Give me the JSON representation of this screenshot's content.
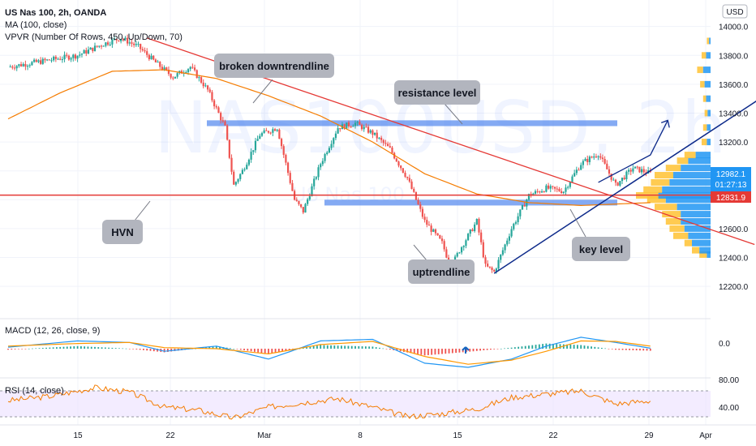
{
  "header": {
    "symbol_line": "US Nas 100, 2h, OANDA",
    "ma_line": "MA (100, close)",
    "vpvr_line": "VPVR (Number Of Rows, 450, Up/Down, 70)",
    "currency": "USD"
  },
  "watermark": {
    "main": "NAS100USD, 2h",
    "sub": "US Nas 100"
  },
  "colors": {
    "up": "#26a69a",
    "down": "#ef5350",
    "ma": "#f57c00",
    "trend_red": "#e53935",
    "trend_blue": "#0d2a8a",
    "zone": "#5b8def",
    "macd": "#2196f3",
    "signal": "#ff9800",
    "rsi": "#f57c00",
    "rsi_band": "#e9ddff",
    "vp_up": "#2196f3",
    "vp_down": "#ffc233"
  },
  "annotations": {
    "broken_downtrend": "broken downtrendline",
    "resistance": "resistance level",
    "hvn": "HVN",
    "key_level": "key level",
    "uptrendline": "uptrendline"
  },
  "chart_data": {
    "type": "candlestick",
    "title": "US Nas 100, 2h, OANDA",
    "x_ticks": [
      "15",
      "22",
      "Mar",
      "8",
      "15",
      "22",
      "29",
      "Apr"
    ],
    "y_ticks": [
      "14000.0",
      "13800.0",
      "13600.0",
      "13400.0",
      "13200.0",
      "12600.0",
      "12400.0",
      "12200.0"
    ],
    "ylim": [
      12150,
      14060
    ],
    "price_path": [
      [
        0,
        13720
      ],
      [
        4,
        13760
      ],
      [
        8,
        13800
      ],
      [
        11,
        13880
      ],
      [
        13,
        13920
      ],
      [
        15,
        13860
      ],
      [
        17,
        13750
      ],
      [
        19,
        13650
      ],
      [
        21,
        13720
      ],
      [
        23,
        13560
      ],
      [
        25,
        13300
      ],
      [
        26,
        12900
      ],
      [
        27,
        13000
      ],
      [
        29,
        13250
      ],
      [
        31,
        13300
      ],
      [
        33,
        12800
      ],
      [
        34,
        12720
      ],
      [
        36,
        13050
      ],
      [
        38,
        13300
      ],
      [
        40,
        13330
      ],
      [
        42,
        13260
      ],
      [
        44,
        13150
      ],
      [
        46,
        12950
      ],
      [
        48,
        12650
      ],
      [
        50,
        12500
      ],
      [
        51,
        12330
      ],
      [
        52,
        12450
      ],
      [
        54,
        12650
      ],
      [
        55,
        12340
      ],
      [
        56,
        12300
      ],
      [
        58,
        12600
      ],
      [
        60,
        12830
      ],
      [
        62,
        12880
      ],
      [
        64,
        12860
      ],
      [
        66,
        13050
      ],
      [
        68,
        13120
      ],
      [
        70,
        12900
      ],
      [
        72,
        13020
      ],
      [
        74,
        12982
      ]
    ],
    "ma_path": [
      [
        0,
        13360
      ],
      [
        6,
        13540
      ],
      [
        12,
        13690
      ],
      [
        18,
        13700
      ],
      [
        24,
        13640
      ],
      [
        30,
        13520
      ],
      [
        36,
        13380
      ],
      [
        42,
        13200
      ],
      [
        48,
        12980
      ],
      [
        54,
        12840
      ],
      [
        60,
        12780
      ],
      [
        66,
        12760
      ],
      [
        70,
        12770
      ],
      [
        74,
        12780
      ]
    ],
    "current_price": "12982.1",
    "countdown": "01:27:13",
    "red_line_price": "12831.9",
    "hvn_price": 12832,
    "resistance_zone": [
      13310,
      13350
    ],
    "key_level_zone": [
      12760,
      12800
    ],
    "downtrend": {
      "from": [
        16,
        13920
      ],
      "to": [
        86,
        12490
      ]
    },
    "uptrend": {
      "from": [
        56,
        12290
      ],
      "to": [
        96,
        13870
      ]
    },
    "projection": [
      [
        68,
        12920
      ],
      [
        74,
        13110
      ],
      [
        76,
        13350
      ]
    ],
    "macd": {
      "label": "MACD (12, 26, close, 9)",
      "y_ticks": [
        "0.0"
      ],
      "macd_path": [
        [
          0,
          3
        ],
        [
          8,
          15
        ],
        [
          14,
          12
        ],
        [
          18,
          -5
        ],
        [
          24,
          5
        ],
        [
          30,
          -20
        ],
        [
          36,
          15
        ],
        [
          42,
          18
        ],
        [
          48,
          -28
        ],
        [
          53,
          -36
        ],
        [
          58,
          -20
        ],
        [
          62,
          5
        ],
        [
          66,
          22
        ],
        [
          70,
          12
        ],
        [
          74,
          1
        ]
      ],
      "signal_path": [
        [
          0,
          5
        ],
        [
          8,
          10
        ],
        [
          14,
          12
        ],
        [
          18,
          2
        ],
        [
          24,
          0
        ],
        [
          30,
          -10
        ],
        [
          36,
          8
        ],
        [
          42,
          14
        ],
        [
          48,
          -15
        ],
        [
          53,
          -30
        ],
        [
          58,
          -22
        ],
        [
          62,
          -5
        ],
        [
          66,
          15
        ],
        [
          70,
          14
        ],
        [
          74,
          5
        ]
      ],
      "ylim": [
        -50,
        50
      ]
    },
    "rsi": {
      "label": "RSI (14, close)",
      "y_ticks": [
        "80.00",
        "40.00"
      ],
      "band": [
        30,
        70
      ],
      "rsi_path": [
        [
          0,
          55
        ],
        [
          5,
          62
        ],
        [
          10,
          75
        ],
        [
          14,
          68
        ],
        [
          18,
          45
        ],
        [
          22,
          40
        ],
        [
          26,
          28
        ],
        [
          30,
          45
        ],
        [
          34,
          52
        ],
        [
          38,
          58
        ],
        [
          42,
          45
        ],
        [
          46,
          30
        ],
        [
          50,
          35
        ],
        [
          54,
          42
        ],
        [
          58,
          60
        ],
        [
          62,
          65
        ],
        [
          66,
          70
        ],
        [
          70,
          50
        ],
        [
          74,
          55
        ]
      ],
      "ylim": [
        20,
        85
      ]
    },
    "volume_profile": {
      "rows": [
        [
          12420,
          0.15,
          0.05
        ],
        [
          12450,
          0.25,
          0.15
        ],
        [
          12500,
          0.35,
          0.25
        ],
        [
          12550,
          0.5,
          0.3
        ],
        [
          12600,
          0.55,
          0.35
        ],
        [
          12650,
          0.6,
          0.4
        ],
        [
          12700,
          0.65,
          0.4
        ],
        [
          12750,
          0.75,
          0.45
        ],
        [
          12800,
          0.85,
          0.6
        ],
        [
          12830,
          1.0,
          0.7
        ],
        [
          12870,
          0.9,
          0.65
        ],
        [
          12920,
          0.8,
          0.55
        ],
        [
          12970,
          0.75,
          0.5
        ],
        [
          13020,
          0.6,
          0.4
        ],
        [
          13070,
          0.45,
          0.3
        ],
        [
          13110,
          0.35,
          0.2
        ],
        [
          13200,
          0.12,
          0.05
        ],
        [
          13300,
          0.1,
          0.05
        ],
        [
          13400,
          0.08,
          0.04
        ],
        [
          13500,
          0.1,
          0.06
        ],
        [
          13600,
          0.14,
          0.08
        ],
        [
          13700,
          0.18,
          0.1
        ],
        [
          13800,
          0.12,
          0.06
        ],
        [
          13900,
          0.05,
          0.02
        ]
      ]
    }
  }
}
